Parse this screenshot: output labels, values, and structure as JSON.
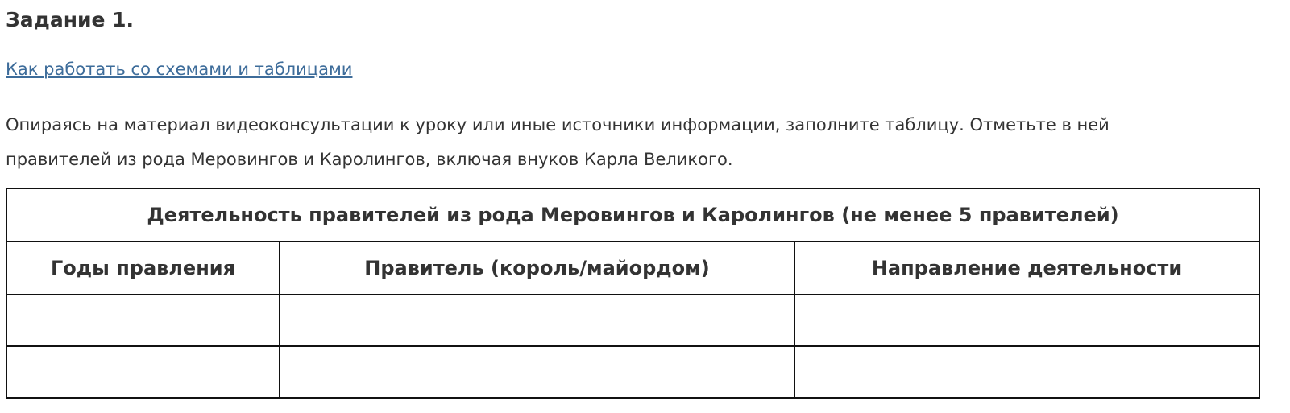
{
  "title": "Задание 1.",
  "link": "Как работать со схемами и таблицами",
  "instructions": "Опираясь на материал видеоконсультации к уроку или иные источники информации, заполните таблицу. Отметьте в ней правителей из рода Меровингов и Каролингов, включая внуков Карла Великого.",
  "table": {
    "caption": "Деятельность правителей из рода Меровингов и Каролингов (не менее 5 правителей)",
    "columns": [
      "Годы правления",
      "Правитель (король/майордом)",
      "Направление деятельности"
    ],
    "rows": [
      [
        "",
        "",
        ""
      ],
      [
        "",
        "",
        ""
      ]
    ]
  },
  "colors": {
    "text": "#333333",
    "link": "#3d6c9a",
    "border": "#111111"
  }
}
